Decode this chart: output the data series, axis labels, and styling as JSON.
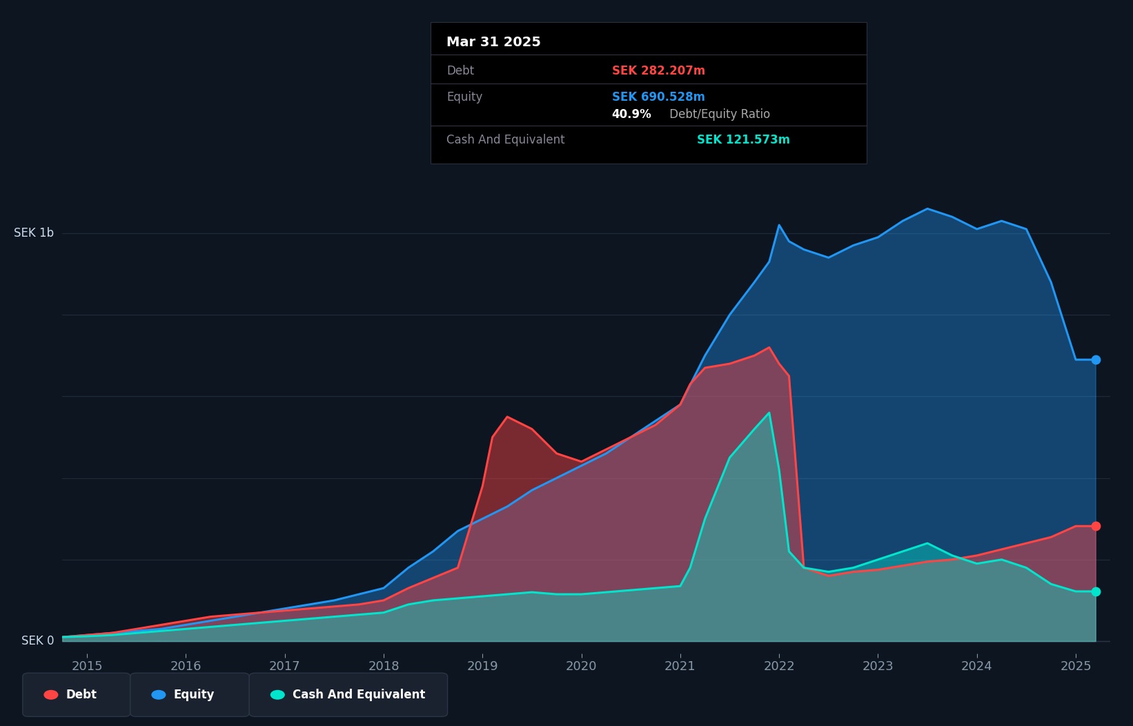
{
  "bg_color": "#0d1520",
  "plot_bg_color": "#0d1520",
  "grid_color": "#1e2a3a",
  "debt_color": "#ff4444",
  "equity_color": "#2196f3",
  "cash_color": "#00e5cc",
  "ylabel_1b": "SEK 1b",
  "ylabel_0": "SEK 0",
  "years": [
    2015,
    2016,
    2017,
    2018,
    2019,
    2020,
    2021,
    2022,
    2023,
    2024,
    2025
  ],
  "tooltip_title": "Mar 31 2025",
  "tooltip_debt_label": "Debt",
  "tooltip_debt_val": "SEK 282.207m",
  "tooltip_equity_label": "Equity",
  "tooltip_equity_val": "SEK 690.528m",
  "tooltip_ratio": "40.9%",
  "tooltip_ratio_text": " Debt/Equity Ratio",
  "tooltip_cash_label": "Cash And Equivalent",
  "tooltip_cash_val": "SEK 121.573m",
  "legend_debt": "Debt",
  "legend_equity": "Equity",
  "legend_cash": "Cash And Equivalent",
  "debt_x": [
    2014.75,
    2015.0,
    2015.25,
    2015.5,
    2015.75,
    2016.0,
    2016.25,
    2016.5,
    2016.75,
    2017.0,
    2017.25,
    2017.5,
    2017.75,
    2018.0,
    2018.25,
    2018.5,
    2018.75,
    2019.0,
    2019.1,
    2019.25,
    2019.5,
    2019.75,
    2020.0,
    2020.25,
    2020.5,
    2020.75,
    2021.0,
    2021.1,
    2021.25,
    2021.5,
    2021.75,
    2021.9,
    2022.0,
    2022.1,
    2022.25,
    2022.5,
    2022.75,
    2023.0,
    2023.25,
    2023.5,
    2023.75,
    2024.0,
    2024.25,
    2024.5,
    2024.75,
    2025.0,
    2025.2
  ],
  "debt_y": [
    0.01,
    0.015,
    0.02,
    0.03,
    0.04,
    0.05,
    0.06,
    0.065,
    0.07,
    0.075,
    0.08,
    0.085,
    0.09,
    0.1,
    0.13,
    0.155,
    0.18,
    0.38,
    0.5,
    0.55,
    0.52,
    0.46,
    0.44,
    0.47,
    0.5,
    0.53,
    0.58,
    0.63,
    0.67,
    0.68,
    0.7,
    0.72,
    0.68,
    0.65,
    0.18,
    0.16,
    0.17,
    0.175,
    0.185,
    0.195,
    0.2,
    0.21,
    0.225,
    0.24,
    0.255,
    0.282,
    0.282
  ],
  "equity_x": [
    2014.75,
    2015.0,
    2015.25,
    2015.5,
    2015.75,
    2016.0,
    2016.25,
    2016.5,
    2016.75,
    2017.0,
    2017.25,
    2017.5,
    2017.75,
    2018.0,
    2018.25,
    2018.5,
    2018.75,
    2019.0,
    2019.25,
    2019.5,
    2019.75,
    2020.0,
    2020.25,
    2020.5,
    2020.75,
    2021.0,
    2021.25,
    2021.5,
    2021.75,
    2021.9,
    2022.0,
    2022.1,
    2022.25,
    2022.5,
    2022.75,
    2023.0,
    2023.25,
    2023.5,
    2023.75,
    2024.0,
    2024.25,
    2024.5,
    2024.75,
    2025.0,
    2025.2
  ],
  "equity_y": [
    0.01,
    0.015,
    0.02,
    0.025,
    0.03,
    0.04,
    0.05,
    0.06,
    0.07,
    0.08,
    0.09,
    0.1,
    0.115,
    0.13,
    0.18,
    0.22,
    0.27,
    0.3,
    0.33,
    0.37,
    0.4,
    0.43,
    0.46,
    0.5,
    0.54,
    0.58,
    0.7,
    0.8,
    0.88,
    0.93,
    1.02,
    0.98,
    0.96,
    0.94,
    0.97,
    0.99,
    1.03,
    1.06,
    1.04,
    1.01,
    1.03,
    1.01,
    0.88,
    0.69,
    0.69
  ],
  "cash_x": [
    2014.75,
    2015.0,
    2015.25,
    2015.5,
    2015.75,
    2016.0,
    2016.25,
    2016.5,
    2016.75,
    2017.0,
    2017.25,
    2017.5,
    2017.75,
    2018.0,
    2018.25,
    2018.5,
    2018.75,
    2019.0,
    2019.25,
    2019.5,
    2019.75,
    2020.0,
    2020.25,
    2020.5,
    2020.75,
    2021.0,
    2021.1,
    2021.25,
    2021.5,
    2021.75,
    2021.9,
    2022.0,
    2022.1,
    2022.25,
    2022.5,
    2022.75,
    2023.0,
    2023.25,
    2023.5,
    2023.75,
    2024.0,
    2024.25,
    2024.5,
    2024.75,
    2025.0,
    2025.2
  ],
  "cash_y": [
    0.01,
    0.012,
    0.015,
    0.02,
    0.025,
    0.03,
    0.035,
    0.04,
    0.045,
    0.05,
    0.055,
    0.06,
    0.065,
    0.07,
    0.09,
    0.1,
    0.105,
    0.11,
    0.115,
    0.12,
    0.115,
    0.115,
    0.12,
    0.125,
    0.13,
    0.135,
    0.18,
    0.3,
    0.45,
    0.52,
    0.56,
    0.42,
    0.22,
    0.18,
    0.17,
    0.18,
    0.2,
    0.22,
    0.24,
    0.21,
    0.19,
    0.2,
    0.18,
    0.14,
    0.122,
    0.122
  ],
  "xlim": [
    2014.75,
    2025.35
  ],
  "ylim": [
    -0.03,
    1.18
  ],
  "line_width": 2.2
}
